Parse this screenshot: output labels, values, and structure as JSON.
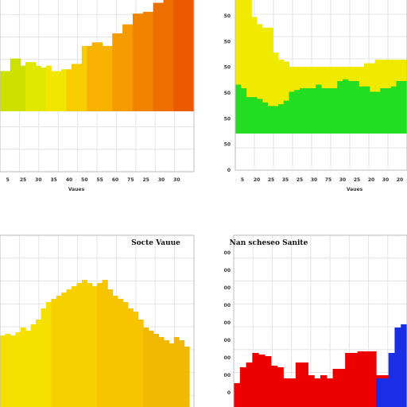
{
  "chart_data": [
    {
      "type": "bar",
      "title": "",
      "xlabel": "Vaues",
      "ylabel": "",
      "x_ticks": [
        "5",
        "25",
        "30",
        "35",
        "40",
        "50",
        "55",
        "60",
        "75",
        "25",
        "30",
        "30"
      ],
      "y_ticks": [],
      "ylim": [
        0,
        100
      ],
      "values": [
        56,
        56,
        63,
        63,
        59,
        61,
        61,
        59,
        58,
        59,
        56,
        56,
        57,
        57,
        60,
        60,
        70,
        70,
        72,
        72,
        70,
        70,
        77,
        77,
        82,
        82,
        88,
        88,
        89,
        89,
        94,
        94,
        98,
        98,
        100,
        100,
        100,
        100
      ],
      "colors": [
        "#cde000",
        "#e0e800",
        "#f2e600",
        "#f7cc00",
        "#f7b200",
        "#f59a00",
        "#f08400",
        "#ee6e00",
        "#eb5a00"
      ]
    },
    {
      "type": "bar",
      "title": "",
      "xlabel": "Vaues",
      "ylabel": "",
      "x_ticks": [
        "5",
        "20",
        "25",
        "35",
        "25",
        "30",
        "75",
        "30",
        "25",
        "20",
        "30",
        "20"
      ],
      "y_ticks": [
        "0",
        "50",
        "50",
        "50",
        "50",
        "50",
        "50"
      ],
      "ylim": [
        0,
        100
      ],
      "series": [
        {
          "name": "",
          "values": [
            48,
            46,
            41,
            41,
            40,
            38,
            36,
            36,
            37,
            39,
            44,
            45,
            46,
            46,
            46,
            48,
            46,
            46,
            46,
            50,
            51,
            50,
            50,
            47,
            47,
            44,
            44,
            46,
            46,
            47,
            50,
            50
          ]
        },
        {
          "name": "",
          "values": [
            98,
            100,
            100,
            86,
            82,
            80,
            80,
            66,
            62,
            61,
            58,
            58,
            58,
            58,
            58,
            58,
            58,
            58,
            58,
            58,
            58,
            58,
            58,
            58,
            60,
            60,
            62,
            62,
            62,
            62,
            62,
            62
          ]
        }
      ],
      "colors": [
        "#22dd22",
        "#f0ea00"
      ]
    },
    {
      "type": "bar",
      "title": "Socte Vauue",
      "xlabel": "",
      "ylabel": "",
      "x_ticks": [],
      "y_ticks": [],
      "ylim": [
        0,
        100
      ],
      "values": [
        45,
        46,
        45,
        47,
        50,
        48,
        52,
        55,
        62,
        66,
        68,
        70,
        72,
        74,
        76,
        78,
        80,
        78,
        76,
        78,
        80,
        74,
        70,
        68,
        66,
        62,
        60,
        55,
        50,
        48,
        46,
        44,
        42,
        40,
        44,
        42,
        38
      ],
      "colors": [
        "#f5e000",
        "#f7d000",
        "#f8c400",
        "#f0b800"
      ]
    },
    {
      "type": "bar",
      "title": "Nan scheseo Sanite",
      "xlabel": "",
      "ylabel": "",
      "x_ticks": [],
      "y_ticks": [
        "0",
        "00",
        "00",
        "00",
        "00",
        "00",
        "00",
        "00",
        "00"
      ],
      "ylim": [
        0,
        100
      ],
      "series": [
        {
          "name": "",
          "values": [
            15,
            25,
            28,
            34,
            33,
            32,
            26,
            25,
            18,
            18,
            28,
            28,
            20,
            18,
            20,
            18,
            24,
            24,
            34,
            34,
            35,
            35,
            35,
            20,
            20,
            20,
            22,
            22
          ]
        },
        {
          "name": "",
          "values": [
            0,
            0,
            0,
            0,
            0,
            0,
            0,
            0,
            0,
            0,
            0,
            0,
            0,
            0,
            0,
            0,
            0,
            0,
            0,
            0,
            0,
            0,
            0,
            18,
            18,
            34,
            50,
            52
          ]
        }
      ],
      "colors": [
        "#ee0000",
        "#1a2ee6"
      ]
    }
  ]
}
